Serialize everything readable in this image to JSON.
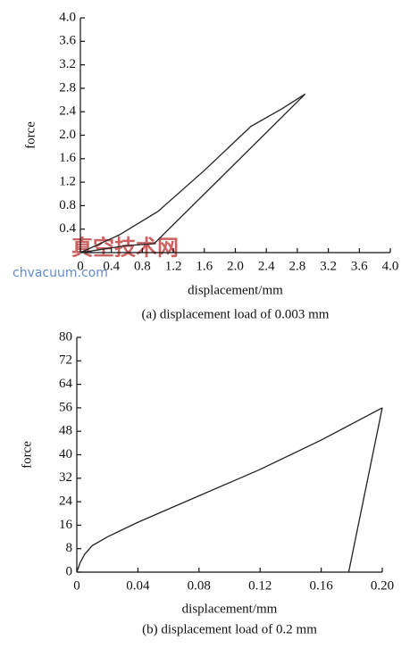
{
  "chart_data": [
    {
      "type": "line",
      "caption": "(a) displacement load of 0.003 mm",
      "ylabel": "force",
      "xlabel": "displacement/mm",
      "xlim": [
        0,
        4.0
      ],
      "ylim": [
        0,
        4.0
      ],
      "xticks": [
        0,
        0.4,
        0.8,
        1.2,
        1.6,
        {
          "value": 2.0,
          "label": "2.0"
        },
        2.4,
        2.8,
        3.2,
        3.6,
        {
          "value": 4.0,
          "label": "4.0"
        }
      ],
      "yticks": [
        0.4,
        0.8,
        1.2,
        1.6,
        {
          "value": 2.0,
          "label": "2.0"
        },
        2.4,
        2.8,
        3.2,
        3.6,
        {
          "value": 4.0,
          "label": "4.0"
        }
      ],
      "series": [
        {
          "color": "#222222",
          "x": [
            0,
            0.2,
            0.5,
            1.0,
            1.6,
            2.2,
            2.6,
            2.9
          ],
          "values": [
            0,
            0.12,
            0.3,
            0.7,
            1.4,
            2.15,
            2.45,
            2.7
          ]
        },
        {
          "color": "#222222",
          "x": [
            2.9,
            0.95,
            0.6,
            0.3,
            0
          ],
          "values": [
            2.7,
            0.15,
            0.12,
            0.06,
            0
          ]
        }
      ]
    },
    {
      "type": "line",
      "caption": "(b) displacement load of 0.2 mm",
      "ylabel": "force",
      "xlabel": "displacement/mm",
      "xlim": [
        0,
        0.2
      ],
      "ylim": [
        0,
        80
      ],
      "xticks": [
        0,
        0.04,
        0.08,
        0.12,
        0.16,
        {
          "value": 0.2,
          "label": "0.20"
        }
      ],
      "yticks": [
        0,
        8,
        16,
        24,
        32,
        40,
        48,
        56,
        64,
        72,
        80
      ],
      "series": [
        {
          "color": "#222222",
          "x": [
            0,
            0.002,
            0.005,
            0.01,
            0.02,
            0.04,
            0.08,
            0.12,
            0.16,
            0.2
          ],
          "values": [
            0,
            3,
            6,
            9,
            12,
            17,
            26,
            35,
            45,
            56
          ]
        },
        {
          "color": "#222222",
          "x": [
            0.2,
            0.178
          ],
          "values": [
            56,
            0
          ]
        }
      ]
    }
  ],
  "watermark": {
    "title": "真空技术网",
    "url": "chvacuum.com"
  }
}
